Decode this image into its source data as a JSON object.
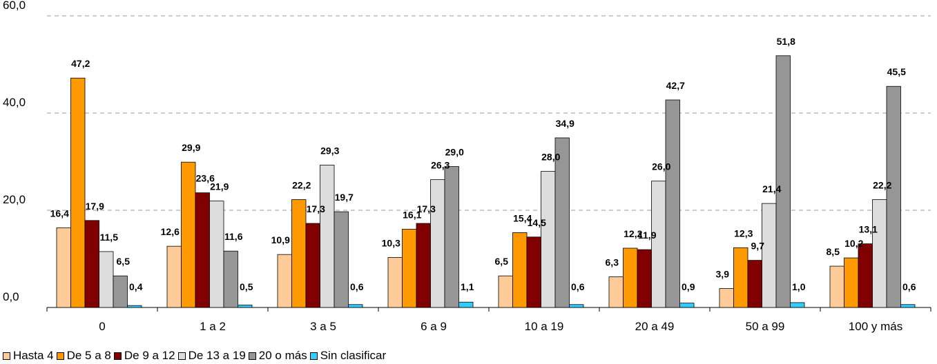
{
  "chart_data": {
    "type": "bar",
    "categories": [
      "0",
      "1 a 2",
      "3 a 5",
      "6 a 9",
      "10 a 19",
      "20 a 49",
      "50 a 99",
      "100 y más"
    ],
    "ylim": [
      0,
      60
    ],
    "yticks": [
      "0,0",
      "20,0",
      "40,0",
      "60,0"
    ],
    "grid": true,
    "legend_position": "bottom-left",
    "series": [
      {
        "name": "Hasta 4",
        "color": "#FFCC99",
        "values": [
          16.4,
          12.6,
          10.9,
          10.3,
          6.5,
          6.3,
          3.9,
          8.5
        ],
        "labels": [
          "16,4",
          "12,6",
          "10,9",
          "10,3",
          "6,5",
          "6,3",
          "3,9",
          "8,5"
        ]
      },
      {
        "name": "De 5 a 8",
        "color": "#FF9900",
        "values": [
          47.2,
          29.9,
          22.2,
          16.1,
          15.4,
          12.2,
          12.3,
          10.2
        ],
        "labels": [
          "47,2",
          "29,9",
          "22,2",
          "16,1",
          "15,4",
          "12,2",
          "12,3",
          "10,2"
        ]
      },
      {
        "name": "De 9 a 12",
        "color": "#800000",
        "values": [
          17.9,
          23.6,
          17.3,
          17.3,
          14.5,
          11.9,
          9.7,
          13.1
        ],
        "labels": [
          "17,9",
          "23,6",
          "17,3",
          "17,3",
          "14,5",
          "11,9",
          "9,7",
          "13,1"
        ]
      },
      {
        "name": "De 13 a 19",
        "color": "#DDDDDD",
        "values": [
          11.5,
          21.9,
          29.3,
          26.3,
          28.0,
          26.0,
          21.4,
          22.2
        ],
        "labels": [
          "11,5",
          "21,9",
          "29,3",
          "26,3",
          "28,0",
          "26,0",
          "21,4",
          "22,2"
        ]
      },
      {
        "name": "20 o más",
        "color": "#969696",
        "values": [
          6.5,
          11.6,
          19.7,
          29.0,
          34.9,
          42.7,
          51.8,
          45.5
        ],
        "labels": [
          "6,5",
          "11,6",
          "19,7",
          "29,0",
          "34,9",
          "42,7",
          "51,8",
          "45,5"
        ]
      },
      {
        "name": "Sin clasificar",
        "color": "#33CCFF",
        "values": [
          0.4,
          0.5,
          0.6,
          1.1,
          0.6,
          0.9,
          1.0,
          0.6
        ],
        "labels": [
          "0,4",
          "0,5",
          "0,6",
          "1,1",
          "0,6",
          "0,9",
          "1,0",
          "0,6"
        ]
      }
    ]
  }
}
